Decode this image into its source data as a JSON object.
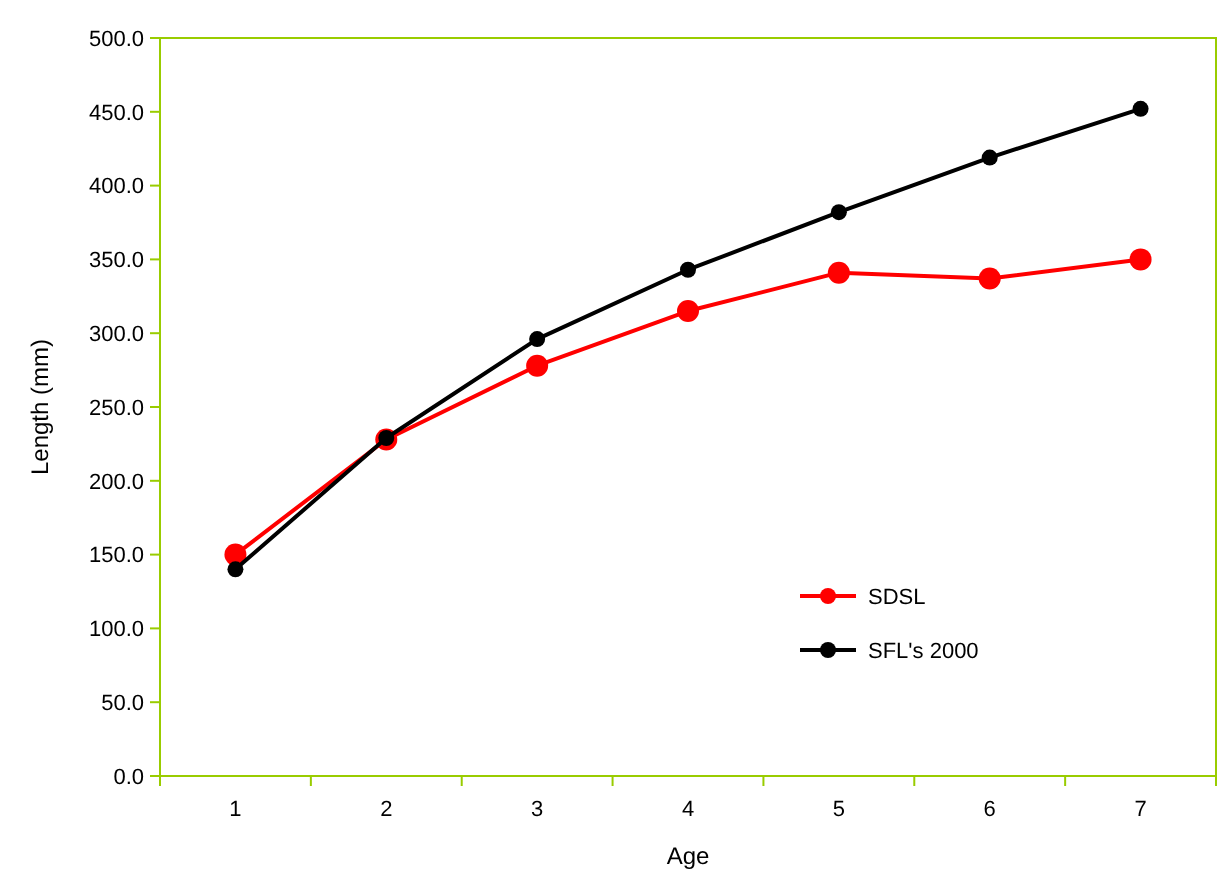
{
  "chart_data": {
    "type": "line",
    "xlabel": "Age",
    "ylabel": "Length (mm)",
    "categories": [
      "1",
      "2",
      "3",
      "4",
      "5",
      "6",
      "7"
    ],
    "series": [
      {
        "name": "SDSL",
        "color": "#ff0000",
        "values": [
          150,
          228,
          278,
          315,
          341,
          337,
          350
        ]
      },
      {
        "name": "SFL's 2000",
        "color": "#000000",
        "values": [
          140,
          229,
          296,
          343,
          382,
          419,
          452
        ]
      }
    ],
    "ylim": [
      0,
      500
    ],
    "yticks": [
      {
        "value": 0,
        "label": "0.0"
      },
      {
        "value": 50,
        "label": "50.0"
      },
      {
        "value": 100,
        "label": "100.0"
      },
      {
        "value": 150,
        "label": "150.0"
      },
      {
        "value": 200,
        "label": "200.0"
      },
      {
        "value": 250,
        "label": "250.0"
      },
      {
        "value": 300,
        "label": "300.0"
      },
      {
        "value": 350,
        "label": "350.0"
      },
      {
        "value": 400,
        "label": "400.0"
      },
      {
        "value": 450,
        "label": "450.0"
      },
      {
        "value": 500,
        "label": "500.0"
      }
    ],
    "grid": false,
    "legend": "bottom right",
    "marker": "circle",
    "line_style": "solid"
  }
}
